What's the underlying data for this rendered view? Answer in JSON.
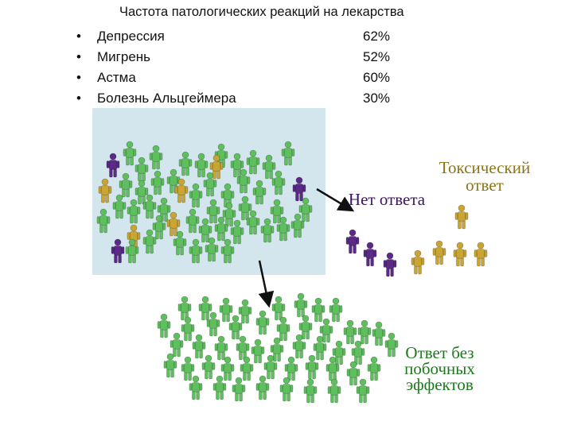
{
  "title": "Частота патологических реакций на лекарства",
  "items": [
    {
      "bullet": "•",
      "label": "Депрессия",
      "percent": "62%"
    },
    {
      "bullet": "•",
      "label": "Мигрень",
      "percent": "52%"
    },
    {
      "bullet": "•",
      "label": "Астма",
      "percent": "60%"
    },
    {
      "bullet": "•",
      "label": "Болезнь Альцгеймера",
      "percent": "30%"
    }
  ],
  "captions": {
    "no_response": "Нет ответа",
    "toxic": "Токсический ответ",
    "no_side_effects": "Ответ без побочных эффектов"
  },
  "colors": {
    "green": "#5fbf5f",
    "purple": "#5a2a86",
    "gold": "#c9a534",
    "panel": "#d3e6ee"
  }
}
